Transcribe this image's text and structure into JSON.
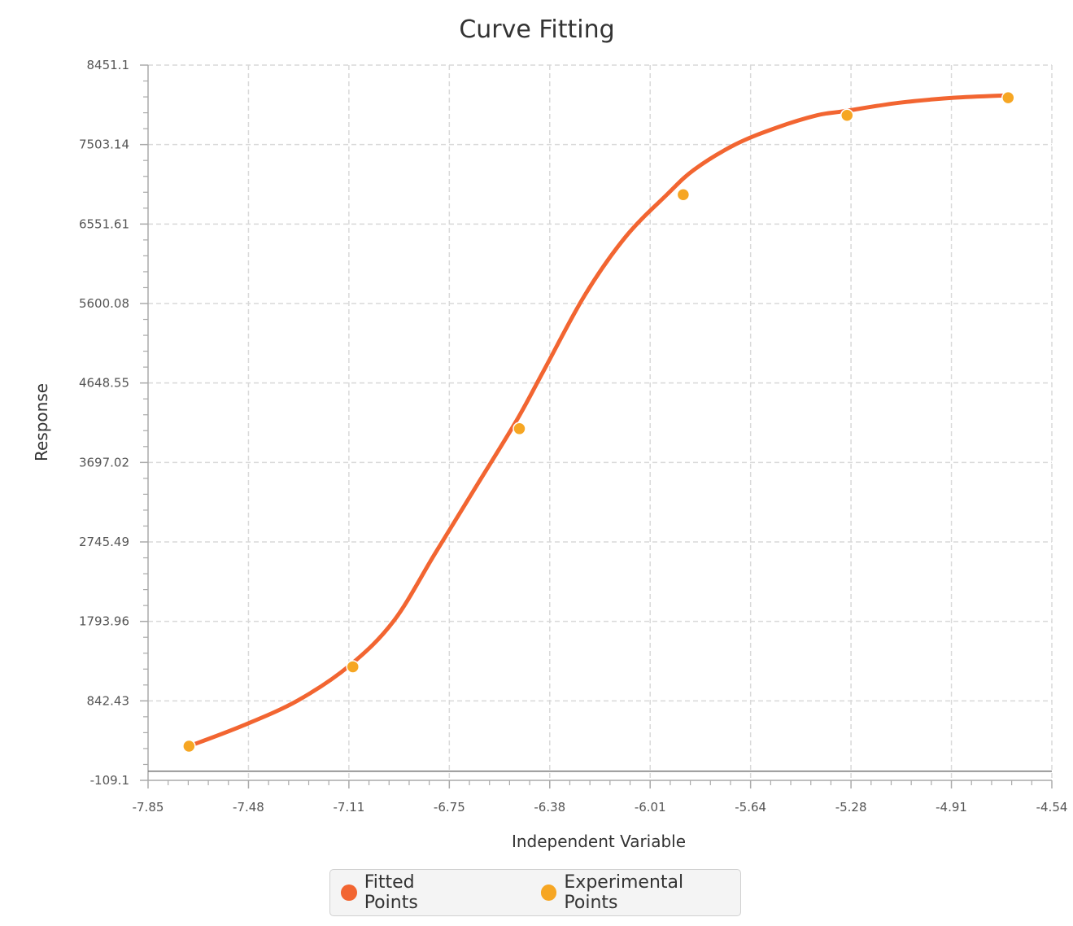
{
  "chart_data": {
    "type": "line",
    "title": "Curve Fitting",
    "xlabel": "Independent Variable",
    "ylabel": "Response",
    "xlim": [
      -7.85,
      -4.54
    ],
    "ylim": [
      -109.1,
      8451.1
    ],
    "x_ticks": [
      "-7.85",
      "-7.48",
      "-7.11",
      "-6.75",
      "-6.38",
      "-6.01",
      "-5.64",
      "-5.28",
      "-4.91",
      "-4.54"
    ],
    "y_ticks": [
      "-109.1",
      "842.43",
      "1793.96",
      "2745.49",
      "3697.02",
      "4648.55",
      "5600.08",
      "6551.61",
      "7503.14",
      "8451.1"
    ],
    "grid": true,
    "legend_position": "bottom",
    "series": [
      {
        "name": "Fitted Points",
        "color": "#f26531",
        "style": "line",
        "x": [
          -7.7,
          -7.5,
          -7.3,
          -7.11,
          -6.95,
          -6.8,
          -6.65,
          -6.5,
          -6.4,
          -6.25,
          -6.1,
          -5.95,
          -5.85,
          -5.7,
          -5.55,
          -5.4,
          -5.3,
          -5.1,
          -4.9,
          -4.7
        ],
        "y": [
          300,
          550,
          850,
          1270,
          1800,
          2600,
          3400,
          4200,
          4800,
          5700,
          6400,
          6900,
          7200,
          7500,
          7700,
          7850,
          7900,
          8000,
          8060,
          8090
        ]
      },
      {
        "name": "Experimental Points",
        "color": "#f6a623",
        "style": "scatter",
        "x": [
          -7.7,
          -7.1,
          -6.49,
          -5.89,
          -5.29,
          -4.7
        ],
        "y": [
          300,
          1250,
          4100,
          6900,
          7850,
          8060
        ]
      }
    ]
  }
}
